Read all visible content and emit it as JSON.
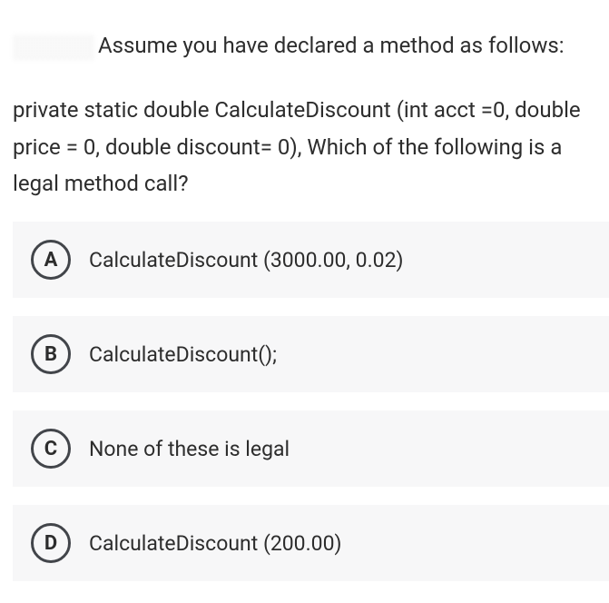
{
  "question": {
    "intro_part1": "Assume you have declared a method as follows:",
    "intro_part2": "private static double CalculateDiscount (int acct =0, double price = 0, double discount= 0), Which of the following is a legal method call?"
  },
  "options": [
    {
      "letter": "A",
      "text": "CalculateDiscount (3000.00, 0.02)"
    },
    {
      "letter": "B",
      "text": "CalculateDiscount();"
    },
    {
      "letter": "C",
      "text": "None of these is legal"
    },
    {
      "letter": "D",
      "text": "CalculateDiscount (200.00)"
    }
  ],
  "colors": {
    "text": "#2d2d2d",
    "option_bg": "#f7f7f8",
    "circle_border": "#42454a",
    "background": "#ffffff"
  },
  "typography": {
    "question_fontsize": 24,
    "option_fontsize": 23,
    "letter_fontsize": 22,
    "letter_weight": 700
  }
}
